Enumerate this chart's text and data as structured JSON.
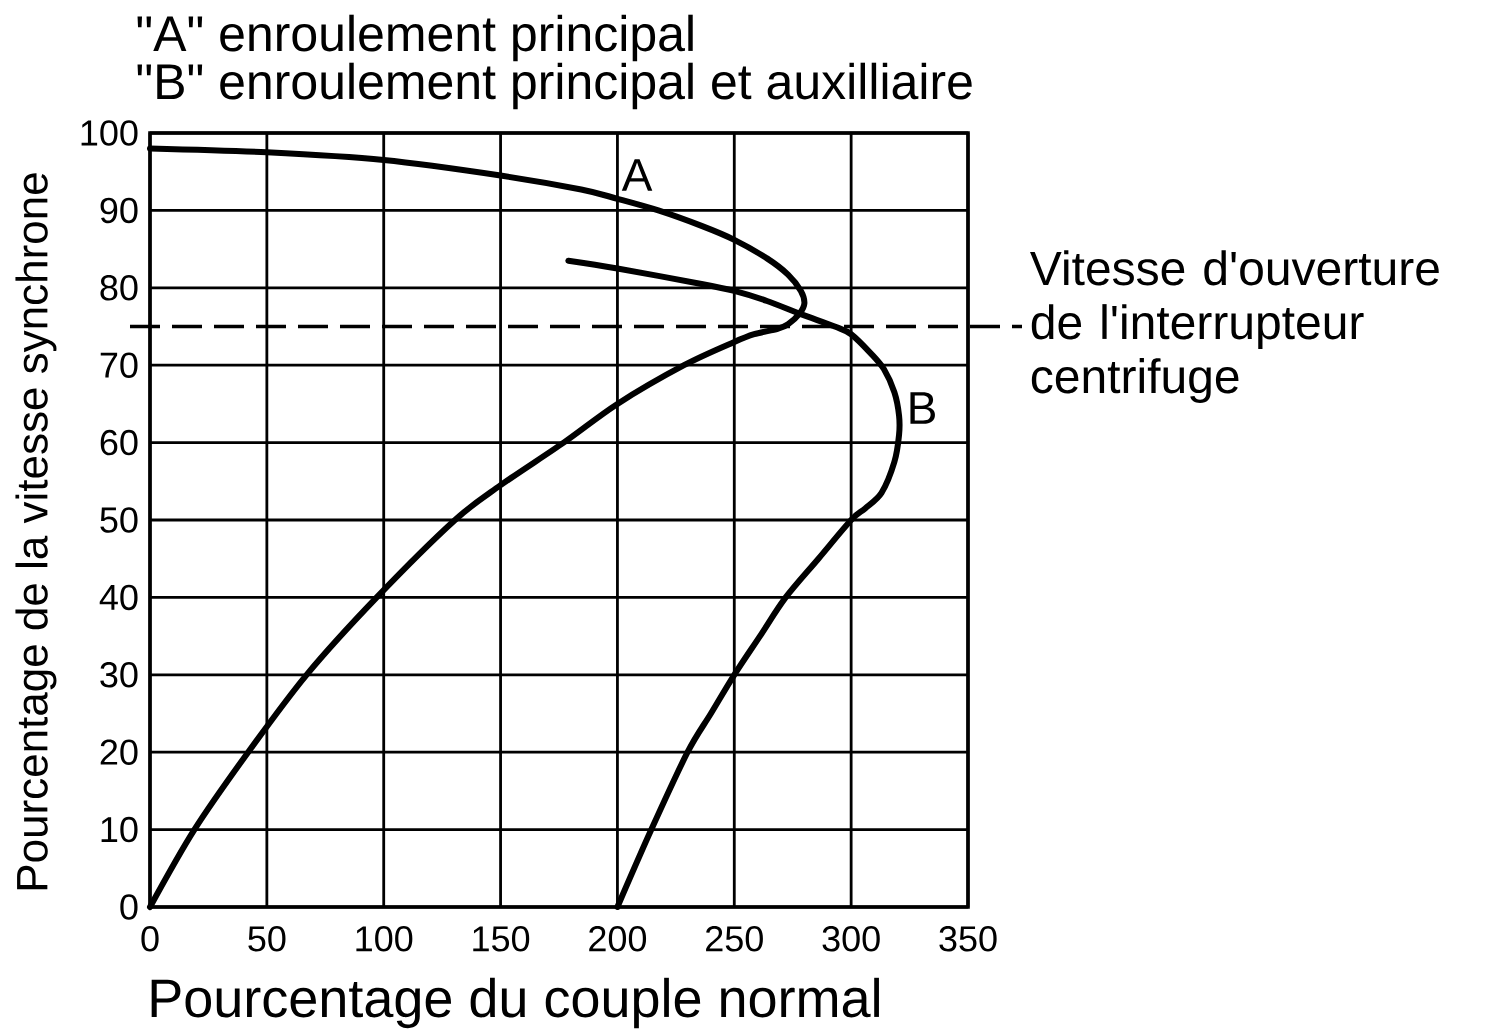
{
  "chart_data": {
    "type": "line",
    "title": "\"A\" enroulement principal",
    "subtitle": "\"B\" enroulement principal et auxilliaire",
    "xlabel": "Pourcentage du couple normal",
    "ylabel": "Pourcentage de la vitesse synchrone",
    "xlim": [
      0,
      350
    ],
    "ylim": [
      0,
      100
    ],
    "xticks": [
      0,
      50,
      100,
      150,
      200,
      250,
      300,
      350
    ],
    "yticks": [
      0,
      10,
      20,
      30,
      40,
      50,
      60,
      70,
      80,
      90,
      100
    ],
    "grid": true,
    "series": [
      {
        "name": "A",
        "color": "#000000",
        "x": [
          0,
          19,
          42,
          67,
          97,
          130.5,
          150,
          177,
          200,
          228.5,
          250,
          258.5,
          268.5,
          273,
          278,
          280,
          278.5,
          273,
          264,
          250,
          236,
          217.5,
          200,
          184.5,
          150,
          100,
          50,
          0
        ],
        "values": [
          0,
          10,
          20,
          30,
          40,
          50,
          54.5,
          60,
          65,
          70,
          73,
          74,
          74.7,
          75.3,
          76.7,
          78,
          79.6,
          81.7,
          83.8,
          86.2,
          88,
          90,
          91.5,
          92.7,
          94.5,
          96.5,
          97.5,
          98
        ]
      },
      {
        "name": "B",
        "color": "#000000",
        "x": [
          179,
          200,
          236,
          250,
          264,
          278.5,
          293,
          300,
          308.5,
          314,
          318.5,
          320.5,
          320.5,
          318.5,
          313,
          306,
          300,
          286,
          272,
          261,
          250,
          240,
          230,
          214.5,
          200
        ],
        "values": [
          83.5,
          82.5,
          80.5,
          79.6,
          78.3,
          76.6,
          75,
          74,
          71.5,
          69.5,
          66.5,
          63.5,
          61,
          57.5,
          53.5,
          51.5,
          50,
          45,
          40,
          35,
          30,
          25,
          20,
          10,
          0
        ]
      }
    ],
    "ref_lines": [
      {
        "axis": "y",
        "value": 75,
        "label": "Vitesse d'ouverture de l'interrupteur centrifuge",
        "line_style": "dashed"
      }
    ]
  }
}
